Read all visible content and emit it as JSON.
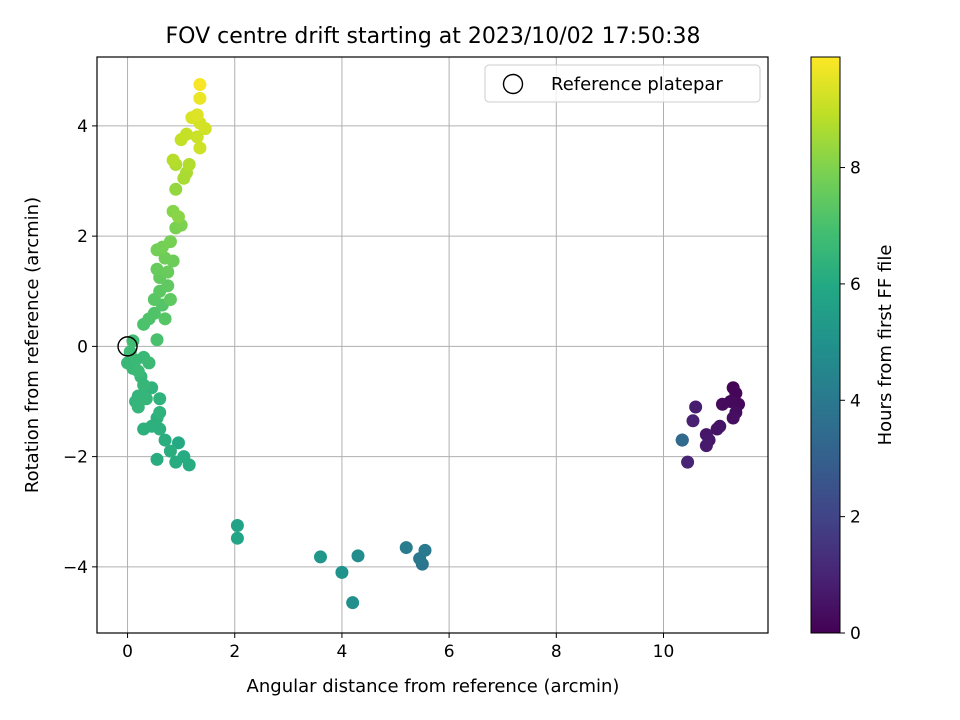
{
  "chart_data": {
    "type": "scatter",
    "title": "FOV centre drift starting at 2023/10/02 17:50:38",
    "xlabel": "Angular distance from reference (arcmin)",
    "ylabel": "Rotation from reference (arcmin)",
    "xlim": [
      -0.57,
      11.95
    ],
    "ylim": [
      -5.2,
      5.25
    ],
    "xticks": [
      0,
      2,
      4,
      6,
      8,
      10
    ],
    "yticks": [
      -4,
      -2,
      0,
      2,
      4
    ],
    "xtick_labels": [
      "0",
      "2",
      "4",
      "6",
      "8",
      "10"
    ],
    "ytick_labels": [
      "−4",
      "−2",
      "0",
      "2",
      "4"
    ],
    "grid": true,
    "legend": {
      "placement": "top-right",
      "label": "Reference platepar"
    },
    "reference_point": {
      "x": 0,
      "y": 0
    },
    "colorbar": {
      "label": "Hours from first FF file",
      "colormap": "viridis",
      "range": [
        0,
        9.9
      ],
      "ticks": [
        0,
        2,
        4,
        6,
        8
      ],
      "tick_labels": [
        "0",
        "2",
        "4",
        "6",
        "8"
      ]
    },
    "series": [
      {
        "color_by": "hours",
        "points": [
          [
            11.3,
            -0.75,
            0.1
          ],
          [
            11.35,
            -0.85,
            0.15
          ],
          [
            11.4,
            -1.05,
            0.2
          ],
          [
            11.25,
            -1.0,
            0.25
          ],
          [
            11.1,
            -1.05,
            0.3
          ],
          [
            11.35,
            -1.2,
            0.35
          ],
          [
            11.3,
            -1.3,
            0.4
          ],
          [
            11.0,
            -1.5,
            0.5
          ],
          [
            11.05,
            -1.45,
            0.55
          ],
          [
            10.8,
            -1.6,
            0.6
          ],
          [
            10.85,
            -1.7,
            0.65
          ],
          [
            10.8,
            -1.8,
            0.7
          ],
          [
            10.6,
            -1.1,
            0.8
          ],
          [
            10.55,
            -1.35,
            0.9
          ],
          [
            10.45,
            -2.1,
            1.0
          ],
          [
            10.35,
            -1.7,
            1.1
          ],
          [
            10.35,
            -1.7,
            3.4
          ],
          [
            5.5,
            -3.95,
            3.9
          ],
          [
            5.45,
            -3.85,
            3.95
          ],
          [
            5.55,
            -3.7,
            4.0
          ],
          [
            5.2,
            -3.65,
            4.1
          ],
          [
            4.3,
            -3.8,
            4.8
          ],
          [
            4.2,
            -4.65,
            4.9
          ],
          [
            4.0,
            -4.1,
            5.0
          ],
          [
            3.6,
            -3.82,
            5.2
          ],
          [
            2.05,
            -3.25,
            5.7
          ],
          [
            2.05,
            -3.48,
            5.75
          ],
          [
            0.95,
            -1.75,
            6.0
          ],
          [
            1.05,
            -2.0,
            6.05
          ],
          [
            1.15,
            -2.15,
            6.1
          ],
          [
            0.9,
            -2.1,
            6.1
          ],
          [
            0.55,
            -2.05,
            6.15
          ],
          [
            0.8,
            -1.9,
            6.2
          ],
          [
            0.7,
            -1.7,
            6.2
          ],
          [
            0.6,
            -1.5,
            6.25
          ],
          [
            0.45,
            -1.45,
            6.25
          ],
          [
            0.3,
            -1.5,
            6.3
          ],
          [
            0.55,
            -1.3,
            6.3
          ],
          [
            0.6,
            -1.2,
            6.35
          ],
          [
            0.6,
            -0.95,
            6.35
          ],
          [
            0.45,
            -0.75,
            6.4
          ],
          [
            0.35,
            -0.8,
            6.4
          ],
          [
            0.2,
            -0.9,
            6.45
          ],
          [
            0.15,
            -1.0,
            6.45
          ],
          [
            0.2,
            -1.1,
            6.5
          ],
          [
            0.35,
            -0.95,
            6.5
          ],
          [
            0.3,
            -0.7,
            6.55
          ],
          [
            0.25,
            -0.55,
            6.55
          ],
          [
            0.1,
            -0.4,
            6.6
          ],
          [
            0.0,
            -0.3,
            6.6
          ],
          [
            0.15,
            -0.25,
            6.65
          ],
          [
            0.3,
            -0.2,
            6.65
          ],
          [
            0.4,
            -0.3,
            6.7
          ],
          [
            0.2,
            -0.45,
            6.7
          ],
          [
            0.05,
            -0.1,
            6.75
          ],
          [
            0.1,
            0.1,
            6.8
          ],
          [
            0.55,
            0.12,
            7.0
          ],
          [
            0.3,
            0.4,
            7.05
          ],
          [
            0.4,
            0.5,
            7.1
          ],
          [
            0.5,
            0.6,
            7.15
          ],
          [
            0.65,
            0.75,
            7.2
          ],
          [
            0.7,
            0.5,
            7.25
          ],
          [
            0.5,
            0.85,
            7.3
          ],
          [
            0.6,
            1.0,
            7.35
          ],
          [
            0.8,
            0.85,
            7.4
          ],
          [
            0.75,
            1.1,
            7.45
          ],
          [
            0.6,
            1.25,
            7.5
          ],
          [
            0.55,
            1.4,
            7.55
          ],
          [
            0.75,
            1.35,
            7.6
          ],
          [
            0.85,
            1.55,
            7.65
          ],
          [
            0.7,
            1.6,
            7.7
          ],
          [
            0.55,
            1.75,
            7.75
          ],
          [
            0.65,
            1.8,
            7.8
          ],
          [
            0.8,
            1.9,
            7.85
          ],
          [
            0.9,
            2.15,
            7.9
          ],
          [
            1.0,
            2.2,
            7.95
          ],
          [
            0.85,
            2.45,
            8.1
          ],
          [
            0.95,
            2.35,
            8.15
          ],
          [
            0.9,
            2.85,
            8.3
          ],
          [
            1.05,
            3.05,
            8.6
          ],
          [
            1.1,
            3.15,
            8.65
          ],
          [
            0.9,
            3.3,
            8.7
          ],
          [
            1.15,
            3.3,
            8.75
          ],
          [
            0.85,
            3.38,
            8.8
          ],
          [
            1.0,
            3.75,
            9.0
          ],
          [
            1.1,
            3.85,
            9.05
          ],
          [
            1.3,
            3.8,
            9.1
          ],
          [
            1.35,
            3.6,
            9.15
          ],
          [
            1.45,
            3.95,
            9.2
          ],
          [
            1.35,
            4.05,
            9.25
          ],
          [
            1.2,
            4.15,
            9.35
          ],
          [
            1.3,
            4.2,
            9.4
          ],
          [
            1.35,
            4.5,
            9.6
          ],
          [
            1.35,
            4.75,
            9.8
          ]
        ]
      }
    ]
  }
}
